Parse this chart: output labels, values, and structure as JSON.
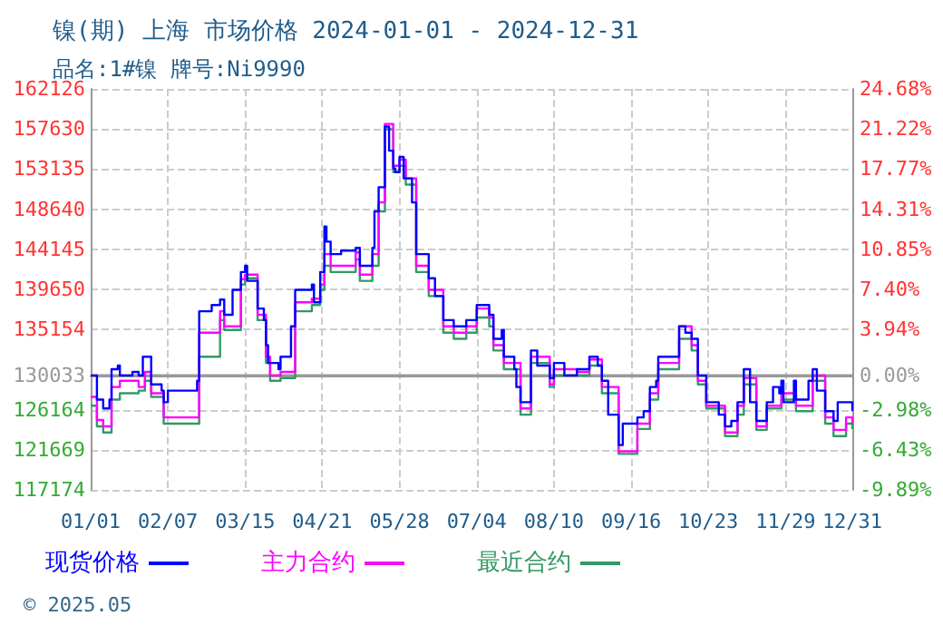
{
  "chart_data": {
    "type": "step",
    "title": "镍(期) 上海 市场价格 2024-01-01 - 2024-12-31",
    "subtitle": "品名:1#镍 牌号:Ni9990",
    "annotations": [
      "© 2025.05"
    ],
    "xlim": [
      "2024-01-01",
      "2024-12-31"
    ],
    "xticks": [
      {
        "value": "2024-01-01",
        "label": "01/01"
      },
      {
        "value": "2024-02-07",
        "label": "02/07"
      },
      {
        "value": "2024-03-15",
        "label": "03/15"
      },
      {
        "value": "2024-04-21",
        "label": "04/21"
      },
      {
        "value": "2024-05-28",
        "label": "05/28"
      },
      {
        "value": "2024-07-04",
        "label": "07/04"
      },
      {
        "value": "2024-08-10",
        "label": "08/10"
      },
      {
        "value": "2024-09-16",
        "label": "09/16"
      },
      {
        "value": "2024-10-23",
        "label": "10/23"
      },
      {
        "value": "2024-11-29",
        "label": "11/29"
      },
      {
        "value": "2024-12-31",
        "label": "12/31"
      }
    ],
    "ylim": [
      117174,
      162126
    ],
    "yticks": [
      117174,
      121669,
      126164,
      130033,
      135154,
      139650,
      144145,
      148640,
      153135,
      157630,
      162126
    ],
    "y2lim": [
      -9.89,
      24.68
    ],
    "y2ticks": [
      {
        "value": -9.89,
        "label": "-9.89%"
      },
      {
        "value": -6.43,
        "label": "-6.43%"
      },
      {
        "value": -2.98,
        "label": "-2.98%"
      },
      {
        "value": 0,
        "label": "0.00%"
      },
      {
        "value": 3.94,
        "label": "3.94%"
      },
      {
        "value": 7.4,
        "label": "7.40%"
      },
      {
        "value": 10.85,
        "label": "10.85%"
      },
      {
        "value": 14.31,
        "label": "14.31%"
      },
      {
        "value": 17.77,
        "label": "17.77%"
      },
      {
        "value": 21.22,
        "label": "21.22%"
      },
      {
        "value": 24.68,
        "label": "24.68%"
      }
    ],
    "ref_lines": [
      {
        "axis": "y",
        "value": 130033,
        "color": "#999999",
        "line_style": "solid"
      }
    ],
    "grid": true,
    "legend": "bottom",
    "series": [
      {
        "name": "现货价格",
        "color": "#0000ff",
        "x": [
          "2024-01-01",
          "2024-01-04",
          "2024-01-07",
          "2024-01-10",
          "2024-01-11",
          "2024-01-14",
          "2024-01-15",
          "2024-01-21",
          "2024-01-24",
          "2024-01-26",
          "2024-01-29",
          "2024-01-30",
          "2024-02-04",
          "2024-02-05",
          "2024-02-07",
          "2024-02-19",
          "2024-02-21",
          "2024-02-22",
          "2024-02-28",
          "2024-03-03",
          "2024-03-05",
          "2024-03-09",
          "2024-03-13",
          "2024-03-15",
          "2024-03-16",
          "2024-03-21",
          "2024-03-24",
          "2024-03-25",
          "2024-03-26",
          "2024-03-31",
          "2024-04-01",
          "2024-04-06",
          "2024-04-08",
          "2024-04-13",
          "2024-04-16",
          "2024-04-17",
          "2024-04-20",
          "2024-04-22",
          "2024-04-23",
          "2024-04-25",
          "2024-04-30",
          "2024-05-07",
          "2024-05-09",
          "2024-05-15",
          "2024-05-16",
          "2024-05-18",
          "2024-05-21",
          "2024-05-23",
          "2024-05-25",
          "2024-05-26",
          "2024-05-28",
          "2024-05-30",
          "2024-06-03",
          "2024-06-05",
          "2024-06-08",
          "2024-06-11",
          "2024-06-14",
          "2024-06-18",
          "2024-06-23",
          "2024-06-29",
          "2024-07-04",
          "2024-07-10",
          "2024-07-12",
          "2024-07-16",
          "2024-07-17",
          "2024-07-22",
          "2024-07-23",
          "2024-07-25",
          "2024-07-28",
          "2024-07-30",
          "2024-08-02",
          "2024-08-08",
          "2024-08-10",
          "2024-08-15",
          "2024-08-21",
          "2024-08-27",
          "2024-08-31",
          "2024-09-02",
          "2024-09-05",
          "2024-09-10",
          "2024-09-12",
          "2024-09-19",
          "2024-09-22",
          "2024-09-25",
          "2024-09-28",
          "2024-09-29",
          "2024-10-05",
          "2024-10-09",
          "2024-10-12",
          "2024-10-15",
          "2024-10-18",
          "2024-10-22",
          "2024-10-28",
          "2024-10-31",
          "2024-11-03",
          "2024-11-06",
          "2024-11-09",
          "2024-11-12",
          "2024-11-15",
          "2024-11-17",
          "2024-11-20",
          "2024-11-23",
          "2024-11-26",
          "2024-11-27",
          "2024-11-28",
          "2024-12-03",
          "2024-12-04",
          "2024-12-10",
          "2024-12-12",
          "2024-12-14",
          "2024-12-18",
          "2024-12-22",
          "2024-12-24",
          "2024-12-31"
        ],
        "values": [
          130000,
          127300,
          126300,
          127300,
          130700,
          131100,
          130000,
          130400,
          130000,
          132100,
          132100,
          129000,
          128300,
          127000,
          128300,
          128300,
          129400,
          137200,
          137900,
          138500,
          136800,
          139600,
          141600,
          142300,
          140600,
          137500,
          136200,
          133400,
          131400,
          130700,
          132100,
          135500,
          139600,
          139600,
          140200,
          138200,
          141600,
          146700,
          145000,
          143600,
          144000,
          144300,
          142300,
          144300,
          148400,
          151100,
          157900,
          155200,
          153200,
          152800,
          154500,
          152100,
          149400,
          143600,
          143600,
          140900,
          138900,
          136200,
          135500,
          136200,
          137900,
          136800,
          134100,
          135100,
          132100,
          130700,
          128700,
          127000,
          127000,
          132800,
          131100,
          129700,
          131400,
          130000,
          130700,
          132100,
          131100,
          129400,
          125600,
          122200,
          124600,
          125300,
          126000,
          128700,
          129400,
          132100,
          132100,
          135500,
          134800,
          134100,
          130000,
          127000,
          125600,
          124300,
          124900,
          127000,
          130700,
          127000,
          124900,
          124900,
          127000,
          128700,
          128000,
          129400,
          127000,
          129400,
          127300,
          129400,
          130700,
          128300,
          126000,
          124900,
          127000,
          126000
        ]
      },
      {
        "name": "主力合约",
        "color": "#ff00ff",
        "x": [
          "2024-01-01",
          "2024-01-04",
          "2024-01-07",
          "2024-01-11",
          "2024-01-15",
          "2024-01-24",
          "2024-01-27",
          "2024-01-30",
          "2024-02-05",
          "2024-02-20",
          "2024-02-22",
          "2024-03-03",
          "2024-03-05",
          "2024-03-13",
          "2024-03-15",
          "2024-03-21",
          "2024-03-25",
          "2024-03-27",
          "2024-04-01",
          "2024-04-08",
          "2024-04-16",
          "2024-04-20",
          "2024-04-22",
          "2024-04-25",
          "2024-05-07",
          "2024-05-09",
          "2024-05-15",
          "2024-05-18",
          "2024-05-21",
          "2024-05-25",
          "2024-05-28",
          "2024-05-31",
          "2024-06-05",
          "2024-06-11",
          "2024-06-18",
          "2024-06-23",
          "2024-06-29",
          "2024-07-04",
          "2024-07-10",
          "2024-07-12",
          "2024-07-17",
          "2024-07-25",
          "2024-07-30",
          "2024-08-08",
          "2024-08-10",
          "2024-08-21",
          "2024-08-27",
          "2024-09-02",
          "2024-09-10",
          "2024-09-19",
          "2024-09-25",
          "2024-09-29",
          "2024-10-05",
          "2024-10-09",
          "2024-10-15",
          "2024-10-18",
          "2024-10-22",
          "2024-10-31",
          "2024-11-06",
          "2024-11-09",
          "2024-11-15",
          "2024-11-20",
          "2024-11-27",
          "2024-12-04",
          "2024-12-12",
          "2024-12-18",
          "2024-12-22",
          "2024-12-28",
          "2024-12-31"
        ],
        "values": [
          127600,
          125000,
          124300,
          128700,
          129400,
          128700,
          130400,
          128000,
          125300,
          125300,
          134800,
          137200,
          135500,
          140800,
          141300,
          136800,
          132100,
          130000,
          130400,
          138200,
          138600,
          140200,
          143600,
          142300,
          143800,
          141300,
          143600,
          149400,
          158200,
          153500,
          154200,
          152100,
          142300,
          139600,
          135500,
          134800,
          135500,
          137500,
          136500,
          133400,
          131400,
          126300,
          132100,
          129000,
          130700,
          130400,
          131800,
          128700,
          121500,
          124600,
          128000,
          131400,
          131400,
          135500,
          133400,
          129400,
          126600,
          123600,
          126600,
          129700,
          124300,
          126600,
          128000,
          126600,
          130000,
          125300,
          123900,
          125300,
          124600
        ]
      },
      {
        "name": "最近合约",
        "color": "#339966",
        "x": [
          "2024-01-01",
          "2024-01-04",
          "2024-01-07",
          "2024-01-11",
          "2024-01-15",
          "2024-01-24",
          "2024-01-27",
          "2024-01-30",
          "2024-02-05",
          "2024-02-20",
          "2024-02-22",
          "2024-03-03",
          "2024-03-05",
          "2024-03-13",
          "2024-03-15",
          "2024-03-21",
          "2024-03-25",
          "2024-03-27",
          "2024-04-01",
          "2024-04-08",
          "2024-04-16",
          "2024-04-20",
          "2024-04-22",
          "2024-04-25",
          "2024-05-07",
          "2024-05-09",
          "2024-05-15",
          "2024-05-18",
          "2024-05-21",
          "2024-05-25",
          "2024-05-28",
          "2024-05-31",
          "2024-06-05",
          "2024-06-11",
          "2024-06-18",
          "2024-06-23",
          "2024-06-29",
          "2024-07-04",
          "2024-07-10",
          "2024-07-12",
          "2024-07-17",
          "2024-07-25",
          "2024-07-30",
          "2024-08-08",
          "2024-08-10",
          "2024-08-21",
          "2024-08-27",
          "2024-09-02",
          "2024-09-10",
          "2024-09-19",
          "2024-09-25",
          "2024-09-29",
          "2024-10-05",
          "2024-10-09",
          "2024-10-15",
          "2024-10-18",
          "2024-10-22",
          "2024-10-31",
          "2024-11-06",
          "2024-11-09",
          "2024-11-15",
          "2024-11-20",
          "2024-11-27",
          "2024-12-04",
          "2024-12-12",
          "2024-12-18",
          "2024-12-22",
          "2024-12-28",
          "2024-12-31"
        ],
        "values": [
          126600,
          124300,
          123600,
          127300,
          128000,
          128300,
          129400,
          127600,
          124600,
          124600,
          132100,
          136200,
          135100,
          140200,
          140900,
          136200,
          131400,
          129400,
          129700,
          137200,
          137900,
          139600,
          142300,
          141600,
          143000,
          140600,
          142300,
          148400,
          157600,
          152800,
          153500,
          151400,
          141600,
          138900,
          134800,
          134100,
          134800,
          136500,
          135500,
          132800,
          130700,
          125600,
          131400,
          128700,
          130000,
          130000,
          131100,
          128000,
          121200,
          124000,
          127300,
          130700,
          130700,
          134100,
          132800,
          129000,
          126300,
          123200,
          125600,
          129000,
          123900,
          126300,
          127300,
          126000,
          129400,
          124600,
          123200,
          124600,
          124000
        ]
      }
    ]
  }
}
